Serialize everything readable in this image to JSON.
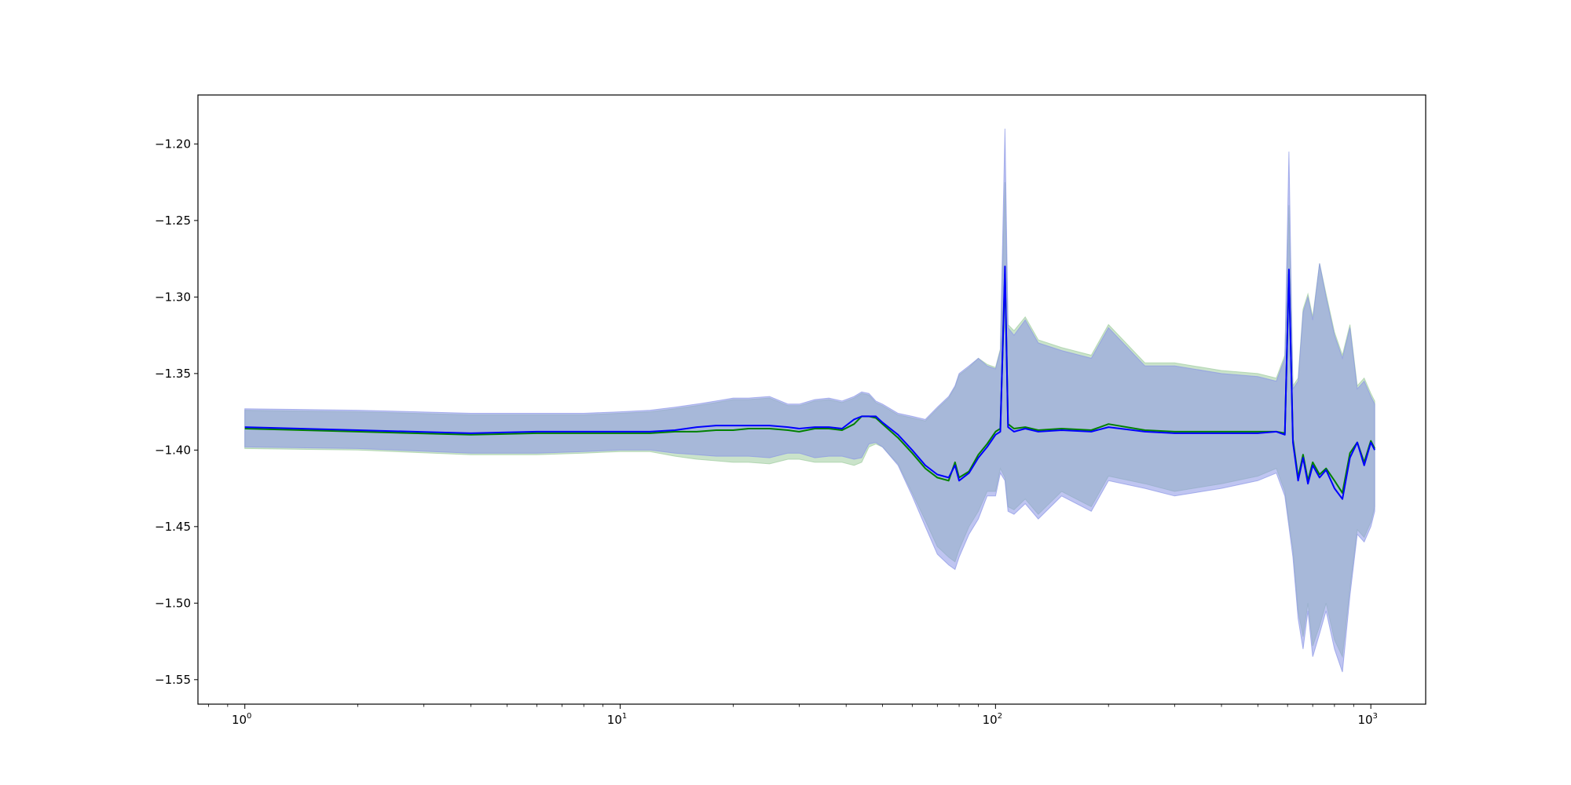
{
  "chart_data": {
    "type": "line",
    "title": "",
    "xlabel": "",
    "ylabel": "",
    "xscale": "log",
    "xlim": [
      0.75,
      1400
    ],
    "ylim": [
      -1.566,
      -1.168
    ],
    "grid": false,
    "legend": "none",
    "yticks": [
      -1.2,
      -1.25,
      -1.3,
      -1.35,
      -1.4,
      -1.45,
      -1.5,
      -1.55
    ],
    "ytick_labels": [
      "−1.20",
      "−1.25",
      "−1.30",
      "−1.35",
      "−1.40",
      "−1.45",
      "−1.50",
      "−1.55"
    ],
    "xticks": [
      {
        "value": 1,
        "base": "10",
        "exp": "0"
      },
      {
        "value": 10,
        "base": "10",
        "exp": "1"
      },
      {
        "value": 100,
        "base": "10",
        "exp": "2"
      },
      {
        "value": 1000,
        "base": "10",
        "exp": "3"
      }
    ],
    "x": [
      1,
      2,
      4,
      6,
      8,
      10,
      12,
      14,
      16,
      18,
      20,
      22,
      25,
      28,
      30,
      33,
      36,
      39,
      42,
      44,
      46,
      48,
      50,
      55,
      60,
      65,
      70,
      75,
      78,
      80,
      85,
      90,
      95,
      100,
      103,
      106,
      108,
      112,
      120,
      130,
      150,
      180,
      200,
      250,
      300,
      400,
      500,
      560,
      590,
      605,
      620,
      640,
      660,
      680,
      700,
      730,
      760,
      800,
      840,
      880,
      920,
      960,
      1000,
      1024
    ],
    "series": [
      {
        "color": "#0000ff",
        "values": [
          -1.385,
          -1.387,
          -1.389,
          -1.388,
          -1.388,
          -1.388,
          -1.388,
          -1.387,
          -1.385,
          -1.384,
          -1.384,
          -1.384,
          -1.384,
          -1.385,
          -1.386,
          -1.385,
          -1.385,
          -1.386,
          -1.38,
          -1.378,
          -1.378,
          -1.378,
          -1.382,
          -1.39,
          -1.4,
          -1.41,
          -1.416,
          -1.418,
          -1.41,
          -1.42,
          -1.415,
          -1.405,
          -1.398,
          -1.39,
          -1.388,
          -1.28,
          -1.385,
          -1.388,
          -1.386,
          -1.388,
          -1.387,
          -1.388,
          -1.385,
          -1.388,
          -1.389,
          -1.389,
          -1.389,
          -1.388,
          -1.39,
          -1.282,
          -1.395,
          -1.42,
          -1.405,
          -1.422,
          -1.41,
          -1.418,
          -1.413,
          -1.425,
          -1.432,
          -1.405,
          -1.395,
          -1.41,
          -1.395,
          -1.4
        ],
        "upper": [
          -1.373,
          -1.374,
          -1.376,
          -1.376,
          -1.376,
          -1.375,
          -1.374,
          -1.372,
          -1.37,
          -1.368,
          -1.366,
          -1.366,
          -1.365,
          -1.37,
          -1.37,
          -1.367,
          -1.366,
          -1.368,
          -1.365,
          -1.362,
          -1.363,
          -1.368,
          -1.37,
          -1.376,
          -1.378,
          -1.38,
          -1.372,
          -1.365,
          -1.358,
          -1.35,
          -1.345,
          -1.34,
          -1.345,
          -1.347,
          -1.335,
          -1.19,
          -1.32,
          -1.325,
          -1.315,
          -1.33,
          -1.335,
          -1.34,
          -1.32,
          -1.345,
          -1.345,
          -1.35,
          -1.352,
          -1.355,
          -1.34,
          -1.205,
          -1.36,
          -1.355,
          -1.31,
          -1.3,
          -1.315,
          -1.278,
          -1.3,
          -1.325,
          -1.34,
          -1.32,
          -1.36,
          -1.355,
          -1.365,
          -1.37
        ],
        "lower": [
          -1.398,
          -1.399,
          -1.402,
          -1.402,
          -1.401,
          -1.4,
          -1.4,
          -1.402,
          -1.403,
          -1.404,
          -1.404,
          -1.404,
          -1.405,
          -1.402,
          -1.402,
          -1.405,
          -1.404,
          -1.404,
          -1.406,
          -1.405,
          -1.396,
          -1.395,
          -1.398,
          -1.41,
          -1.43,
          -1.45,
          -1.468,
          -1.475,
          -1.478,
          -1.47,
          -1.455,
          -1.445,
          -1.43,
          -1.43,
          -1.415,
          -1.42,
          -1.44,
          -1.442,
          -1.435,
          -1.445,
          -1.43,
          -1.44,
          -1.42,
          -1.425,
          -1.43,
          -1.425,
          -1.42,
          -1.415,
          -1.43,
          -1.45,
          -1.47,
          -1.51,
          -1.53,
          -1.505,
          -1.535,
          -1.52,
          -1.505,
          -1.53,
          -1.545,
          -1.495,
          -1.455,
          -1.46,
          -1.45,
          -1.44
        ],
        "band_color": "#8a96e6"
      },
      {
        "color": "#008000",
        "values": [
          -1.386,
          -1.388,
          -1.39,
          -1.389,
          -1.389,
          -1.389,
          -1.389,
          -1.388,
          -1.388,
          -1.387,
          -1.387,
          -1.386,
          -1.386,
          -1.387,
          -1.388,
          -1.386,
          -1.386,
          -1.387,
          -1.383,
          -1.378,
          -1.378,
          -1.379,
          -1.383,
          -1.392,
          -1.402,
          -1.412,
          -1.418,
          -1.42,
          -1.408,
          -1.418,
          -1.414,
          -1.403,
          -1.396,
          -1.388,
          -1.386,
          -1.285,
          -1.383,
          -1.386,
          -1.385,
          -1.387,
          -1.386,
          -1.387,
          -1.383,
          -1.387,
          -1.388,
          -1.388,
          -1.388,
          -1.388,
          -1.389,
          -1.285,
          -1.393,
          -1.418,
          -1.403,
          -1.42,
          -1.408,
          -1.416,
          -1.412,
          -1.42,
          -1.428,
          -1.402,
          -1.395,
          -1.408,
          -1.394,
          -1.399
        ],
        "upper": [
          -1.374,
          -1.375,
          -1.377,
          -1.377,
          -1.377,
          -1.376,
          -1.375,
          -1.373,
          -1.371,
          -1.369,
          -1.367,
          -1.367,
          -1.366,
          -1.371,
          -1.371,
          -1.368,
          -1.367,
          -1.369,
          -1.366,
          -1.363,
          -1.364,
          -1.369,
          -1.371,
          -1.377,
          -1.379,
          -1.381,
          -1.373,
          -1.366,
          -1.359,
          -1.351,
          -1.346,
          -1.34,
          -1.344,
          -1.346,
          -1.334,
          -1.225,
          -1.318,
          -1.322,
          -1.313,
          -1.328,
          -1.333,
          -1.338,
          -1.318,
          -1.343,
          -1.343,
          -1.348,
          -1.35,
          -1.353,
          -1.338,
          -1.24,
          -1.358,
          -1.353,
          -1.308,
          -1.298,
          -1.313,
          -1.278,
          -1.298,
          -1.323,
          -1.338,
          -1.318,
          -1.358,
          -1.353,
          -1.363,
          -1.368
        ],
        "lower": [
          -1.399,
          -1.4,
          -1.403,
          -1.403,
          -1.402,
          -1.401,
          -1.401,
          -1.404,
          -1.406,
          -1.407,
          -1.408,
          -1.408,
          -1.409,
          -1.406,
          -1.406,
          -1.408,
          -1.408,
          -1.408,
          -1.41,
          -1.408,
          -1.398,
          -1.396,
          -1.398,
          -1.409,
          -1.428,
          -1.446,
          -1.463,
          -1.47,
          -1.473,
          -1.465,
          -1.45,
          -1.44,
          -1.427,
          -1.427,
          -1.412,
          -1.418,
          -1.437,
          -1.439,
          -1.432,
          -1.442,
          -1.427,
          -1.437,
          -1.417,
          -1.422,
          -1.427,
          -1.422,
          -1.417,
          -1.412,
          -1.427,
          -1.447,
          -1.465,
          -1.505,
          -1.522,
          -1.5,
          -1.528,
          -1.515,
          -1.5,
          -1.524,
          -1.535,
          -1.49,
          -1.452,
          -1.457,
          -1.447,
          -1.437
        ],
        "band_color": "#9fcc9f"
      }
    ]
  }
}
